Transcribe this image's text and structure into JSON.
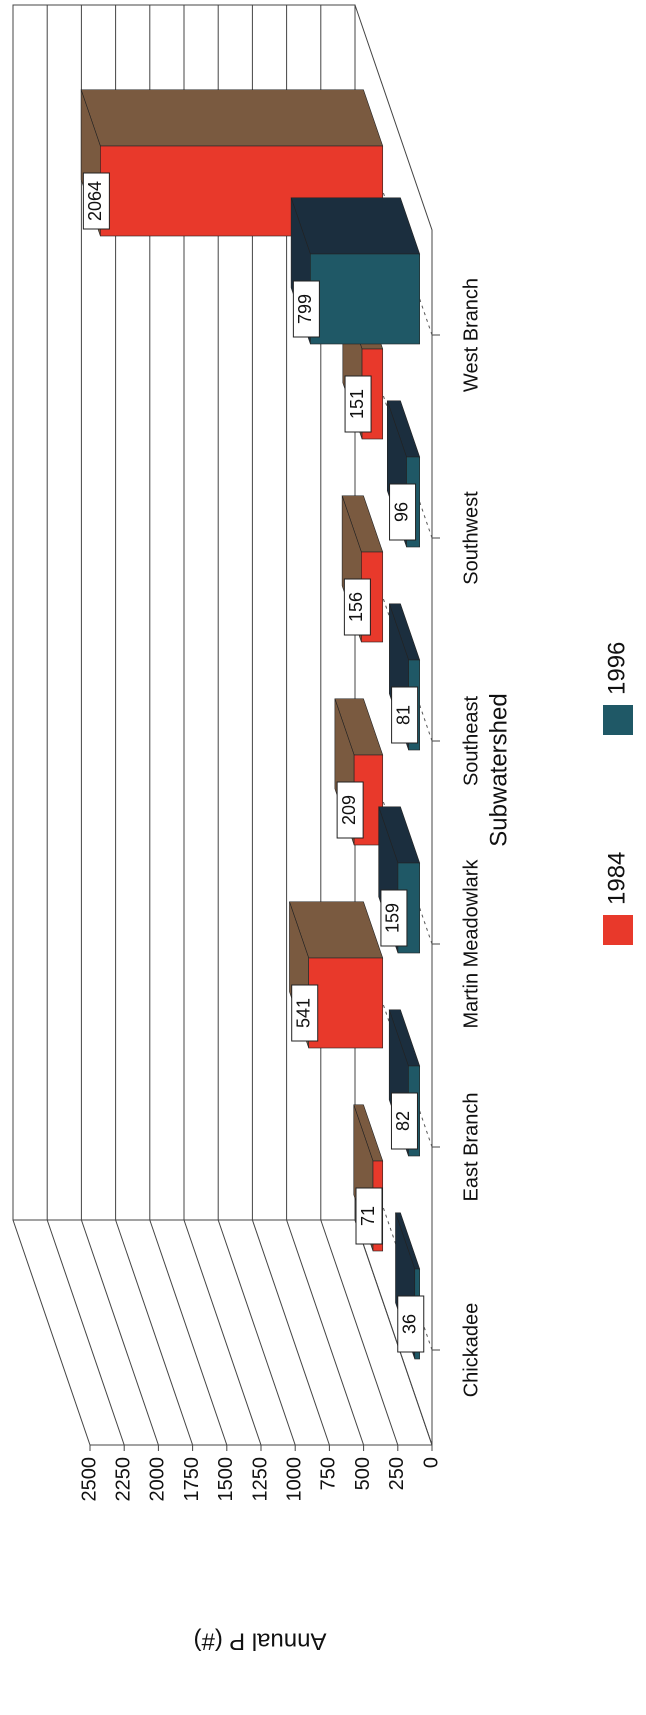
{
  "chart_data": {
    "type": "bar3d",
    "x_label": "Subwatershed",
    "y_label": "Annual P (#)",
    "categories": [
      "Chickadee",
      "East Branch",
      "Martin Meadowlark",
      "Southeast",
      "Southwest",
      "West Branch"
    ],
    "series": [
      {
        "name": "1984",
        "color": "#e8392b",
        "side_color": "#7a5a40",
        "values": [
          71,
          541,
          209,
          156,
          151,
          2064
        ]
      },
      {
        "name": "1996",
        "color": "#1f5866",
        "side_color": "#1b2e3e",
        "values": [
          36,
          82,
          159,
          81,
          96,
          799
        ]
      }
    ],
    "ylim": [
      0,
      2500
    ],
    "yticks": [
      0,
      250,
      500,
      750,
      1000,
      1250,
      1500,
      1750,
      2000,
      2250,
      2500
    ],
    "grid": true,
    "legend": "bottom"
  }
}
